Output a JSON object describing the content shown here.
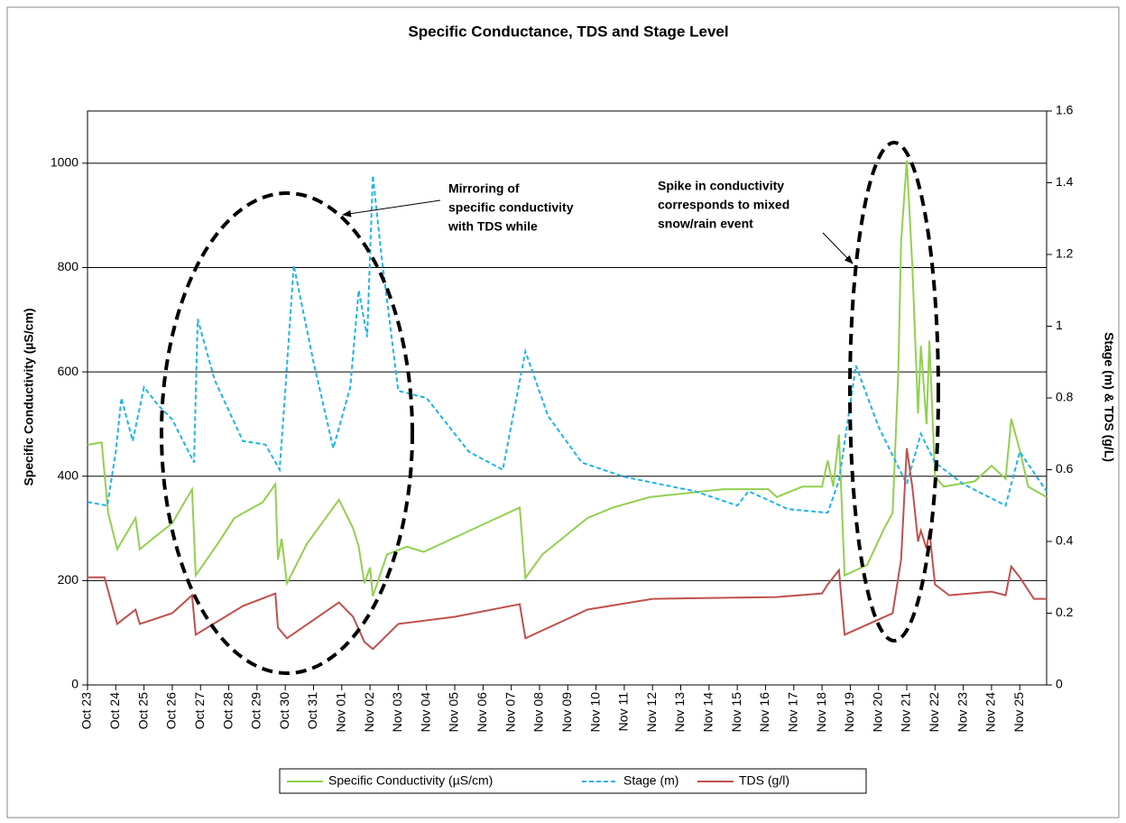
{
  "chart_data": {
    "type": "line",
    "title": "Specific Conductance, TDS and Stage Level",
    "y_label": "Specific Conductivity (µS/cm)",
    "y2_label": "Stage (m) & TDS (g/L)",
    "xlim": [
      0,
      33.95
    ],
    "xticks": [
      {
        "value": 0,
        "label": "Oct 23"
      },
      {
        "value": 1,
        "label": "Oct 24"
      },
      {
        "value": 2,
        "label": "Oct 25"
      },
      {
        "value": 3,
        "label": "Oct 26"
      },
      {
        "value": 4,
        "label": "Oct 27"
      },
      {
        "value": 5,
        "label": "Oct 28"
      },
      {
        "value": 6,
        "label": "Oct 29"
      },
      {
        "value": 7,
        "label": "Oct 30"
      },
      {
        "value": 8,
        "label": "Oct 31"
      },
      {
        "value": 9,
        "label": "Nov 01"
      },
      {
        "value": 10,
        "label": "Nov 02"
      },
      {
        "value": 11,
        "label": "Nov 03"
      },
      {
        "value": 12,
        "label": "Nov 04"
      },
      {
        "value": 13,
        "label": "Nov 05"
      },
      {
        "value": 14,
        "label": "Nov 06"
      },
      {
        "value": 15,
        "label": "Nov 07"
      },
      {
        "value": 16,
        "label": "Nov 08"
      },
      {
        "value": 17,
        "label": "Nov 09"
      },
      {
        "value": 18,
        "label": "Nov 10"
      },
      {
        "value": 19,
        "label": "Nov 11"
      },
      {
        "value": 20,
        "label": "Nov 12"
      },
      {
        "value": 21,
        "label": "Nov 13"
      },
      {
        "value": 22,
        "label": "Nov 14"
      },
      {
        "value": 23,
        "label": "Nov 15"
      },
      {
        "value": 24,
        "label": "Nov 16"
      },
      {
        "value": 25,
        "label": "Nov 17"
      },
      {
        "value": 26,
        "label": "Nov 18"
      },
      {
        "value": 27,
        "label": "Nov 19"
      },
      {
        "value": 28,
        "label": "Nov 20"
      },
      {
        "value": 29,
        "label": "Nov 21"
      },
      {
        "value": 30,
        "label": "Nov 22"
      },
      {
        "value": 31,
        "label": "Nov 23"
      },
      {
        "value": 32,
        "label": "Nov 24"
      },
      {
        "value": 33,
        "label": "Nov 25"
      }
    ],
    "ylim": [
      0,
      1100
    ],
    "yticks": [
      0,
      200,
      400,
      600,
      800,
      1000
    ],
    "y2lim": [
      0,
      1.6
    ],
    "y2ticks": [
      0,
      0.2,
      0.4,
      0.6,
      0.8,
      1,
      1.2,
      1.4,
      1.6
    ],
    "grid": true,
    "legend": "bottom",
    "annotations": [
      [
        "Mirroring of",
        "specific conductivity",
        "with TDS while"
      ],
      [
        "Spike in conductivity",
        "corresponds to mixed",
        "snow/rain event"
      ]
    ],
    "series": [
      {
        "name": "Specific Conductivity (µS/cm)",
        "color": "#92d050",
        "dash": false,
        "x": [
          0,
          0.5,
          0.73,
          1.05,
          1.7,
          1.85,
          2.3,
          3.0,
          3.7,
          3.83,
          4.6,
          5.2,
          6.2,
          6.65,
          6.74,
          6.87,
          7.06,
          7.76,
          8.9,
          9.4,
          9.6,
          9.8,
          10.0,
          10.1,
          10.6,
          11.3,
          11.9,
          12.9,
          14.1,
          15.3,
          15.5,
          16.1,
          17.7,
          18.6,
          19.9,
          22.5,
          24.1,
          24.4,
          25.3,
          26.0,
          26.2,
          26.4,
          26.6,
          26.8,
          27.6,
          28.2,
          28.5,
          28.7,
          28.8,
          29.0,
          29.2,
          29.4,
          29.5,
          29.7,
          29.8,
          30.0,
          30.3,
          31.4,
          32.0,
          32.5,
          32.7,
          33.0,
          33.3,
          33.95
        ],
        "values": [
          460,
          465,
          330,
          260,
          320,
          260,
          280,
          310,
          375,
          210,
          270,
          320,
          350,
          385,
          240,
          280,
          195,
          270,
          355,
          300,
          265,
          195,
          225,
          170,
          250,
          265,
          255,
          280,
          310,
          340,
          205,
          250,
          320,
          340,
          360,
          375,
          375,
          360,
          380,
          380,
          430,
          380,
          480,
          210,
          230,
          300,
          330,
          600,
          850,
          1005,
          800,
          520,
          650,
          500,
          660,
          400,
          380,
          390,
          420,
          395,
          510,
          450,
          380,
          360
        ]
      },
      {
        "name": "Stage (m)",
        "color": "#1fb4e8",
        "dash": true,
        "axis": "y2",
        "x": [
          0,
          0.7,
          1.0,
          1.2,
          1.6,
          2.0,
          2.5,
          3.0,
          3.77,
          3.9,
          4.5,
          5.5,
          6.3,
          6.8,
          7.0,
          7.3,
          8.0,
          8.7,
          9.3,
          9.6,
          9.9,
          10.1,
          10.4,
          11.0,
          12.0,
          13.5,
          14.7,
          15.5,
          16.3,
          17.5,
          19.0,
          21.5,
          23.0,
          23.4,
          24.8,
          26.2,
          26.6,
          27.2,
          28.0,
          29.0,
          29.5,
          30.0,
          31.0,
          32.5,
          33.0,
          33.95
        ],
        "values": [
          0.51,
          0.5,
          0.65,
          0.8,
          0.68,
          0.83,
          0.78,
          0.74,
          0.62,
          1.02,
          0.85,
          0.68,
          0.67,
          0.6,
          0.82,
          1.17,
          0.9,
          0.66,
          0.83,
          1.1,
          0.97,
          1.42,
          1.2,
          0.82,
          0.8,
          0.65,
          0.6,
          0.93,
          0.75,
          0.62,
          0.58,
          0.54,
          0.5,
          0.54,
          0.49,
          0.48,
          0.57,
          0.89,
          0.72,
          0.56,
          0.7,
          0.62,
          0.56,
          0.5,
          0.65,
          0.54
        ]
      },
      {
        "name": "TDS (g/l)",
        "color": "#c0504d",
        "dash": false,
        "axis": "y2",
        "x": [
          0,
          0.6,
          1.05,
          1.7,
          1.85,
          3.0,
          3.7,
          3.83,
          5.5,
          6.65,
          6.74,
          7.06,
          8.9,
          9.4,
          9.8,
          10.1,
          11.0,
          13.0,
          15.3,
          15.5,
          17.7,
          20.0,
          24.4,
          26.0,
          26.2,
          26.6,
          26.8,
          28.5,
          28.8,
          29.0,
          29.2,
          29.4,
          29.5,
          29.7,
          29.8,
          30.0,
          30.5,
          32.0,
          32.5,
          32.7,
          33.0,
          33.5,
          33.95
        ],
        "values": [
          0.3,
          0.3,
          0.17,
          0.21,
          0.17,
          0.2,
          0.25,
          0.14,
          0.22,
          0.255,
          0.16,
          0.13,
          0.23,
          0.19,
          0.12,
          0.1,
          0.17,
          0.19,
          0.225,
          0.13,
          0.21,
          0.24,
          0.245,
          0.255,
          0.28,
          0.32,
          0.14,
          0.2,
          0.35,
          0.66,
          0.55,
          0.4,
          0.43,
          0.38,
          0.43,
          0.28,
          0.25,
          0.26,
          0.25,
          0.33,
          0.3,
          0.24,
          0.24
        ]
      }
    ]
  }
}
